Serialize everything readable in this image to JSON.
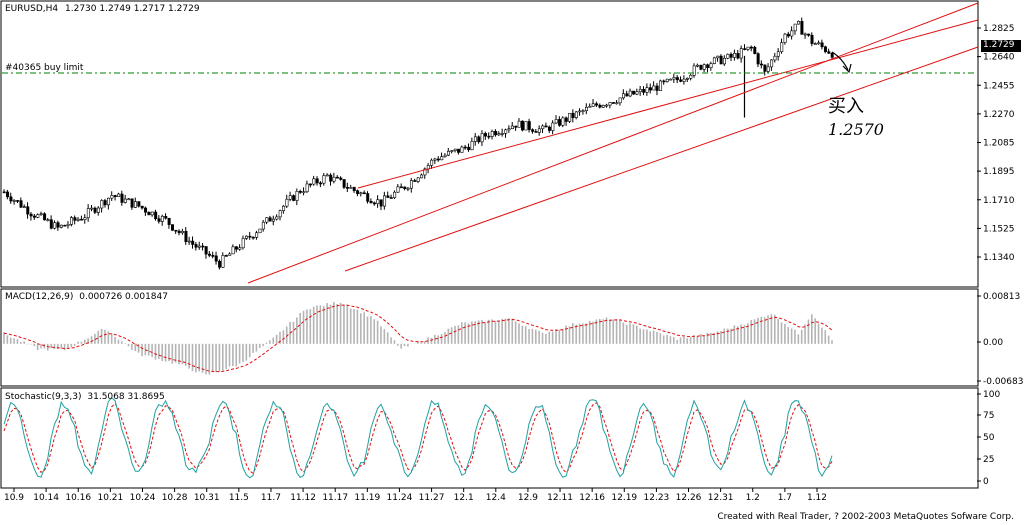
{
  "header": {
    "symbol": "EURUSD,H4",
    "ohlc": "1.2730 1.2749 1.2717 1.2729"
  },
  "order_label": "#40365 buy limit",
  "annotation": {
    "text1": "买入",
    "text2": "1.2570"
  },
  "price_panel": {
    "ticks": [
      "1.2825",
      "1.2640",
      "1.2455",
      "1.2270",
      "1.2085",
      "1.1895",
      "1.1710",
      "1.1525",
      "1.1340"
    ],
    "current_price": "1.2729"
  },
  "macd_panel": {
    "title": "MACD(12,26,9)",
    "values": "0.000726 0.001847",
    "ticks": [
      "0.00813",
      "0.00",
      "-0.00683"
    ]
  },
  "stoch_panel": {
    "title": "Stochastic(9,3,3)",
    "values": "31.5068 31.8695",
    "ticks": [
      "100",
      "75",
      "50",
      "25",
      "0"
    ]
  },
  "x_ticks": [
    "10.9",
    "10.14",
    "10.16",
    "10.21",
    "10.24",
    "10.28",
    "10.31",
    "11.5",
    "11.7",
    "11.12",
    "11.17",
    "11.19",
    "11.24",
    "11.27",
    "12.1",
    "12.4",
    "12.9",
    "12.11",
    "12.16",
    "12.19",
    "12.23",
    "12.26",
    "12.31",
    "1.2",
    "1.7",
    "1.12"
  ],
  "footer": "Created with Real Trader, ? 2002-2003 MetaQuotes Sofware Corp.",
  "colors": {
    "channel": "#e01010",
    "order_line": "#008000",
    "macd_signal": "#e01010",
    "histogram": "#b4b4b4",
    "stoch_main": "#20a0a0",
    "stoch_signal": "#e01010"
  },
  "chart_data": {
    "type": "candlestick",
    "ylim": [
      1.128,
      1.3
    ],
    "price_keypoints": [
      [
        0,
        1.185
      ],
      [
        8,
        1.172
      ],
      [
        16,
        1.162
      ],
      [
        24,
        1.17
      ],
      [
        32,
        1.183
      ],
      [
        40,
        1.176
      ],
      [
        48,
        1.167
      ],
      [
        56,
        1.152
      ],
      [
        64,
        1.14
      ],
      [
        72,
        1.155
      ],
      [
        80,
        1.17
      ],
      [
        88,
        1.186
      ],
      [
        96,
        1.195
      ],
      [
        104,
        1.186
      ],
      [
        112,
        1.178
      ],
      [
        120,
        1.19
      ],
      [
        128,
        1.206
      ],
      [
        136,
        1.212
      ],
      [
        144,
        1.222
      ],
      [
        152,
        1.228
      ],
      [
        160,
        1.224
      ],
      [
        168,
        1.232
      ],
      [
        176,
        1.24
      ],
      [
        184,
        1.245
      ],
      [
        192,
        1.25
      ],
      [
        200,
        1.256
      ],
      [
        208,
        1.266
      ],
      [
        216,
        1.27
      ],
      [
        222,
        1.276
      ],
      [
        226,
        1.26
      ],
      [
        232,
        1.284
      ],
      [
        236,
        1.29
      ],
      [
        240,
        1.28
      ],
      [
        246,
        1.2729
      ]
    ],
    "macd_keypoints": [
      [
        0,
        0.002
      ],
      [
        10,
        -0.001
      ],
      [
        18,
        -0.0012
      ],
      [
        30,
        0.003
      ],
      [
        40,
        -0.002
      ],
      [
        52,
        -0.004
      ],
      [
        60,
        -0.0062
      ],
      [
        70,
        -0.004
      ],
      [
        80,
        0.001
      ],
      [
        90,
        0.007
      ],
      [
        100,
        0.0082
      ],
      [
        110,
        0.005
      ],
      [
        118,
        -0.001
      ],
      [
        126,
        0.001
      ],
      [
        136,
        0.004
      ],
      [
        150,
        0.005
      ],
      [
        160,
        0.002
      ],
      [
        170,
        0.004
      ],
      [
        180,
        0.005
      ],
      [
        190,
        0.003
      ],
      [
        200,
        0.001
      ],
      [
        210,
        0.002
      ],
      [
        220,
        0.004
      ],
      [
        228,
        0.006
      ],
      [
        236,
        0.002
      ],
      [
        240,
        0.006
      ],
      [
        246,
        0.0007
      ]
    ],
    "macd_ylim": [
      -0.0075,
      0.009
    ],
    "stoch_ylim": [
      0,
      100
    ]
  }
}
